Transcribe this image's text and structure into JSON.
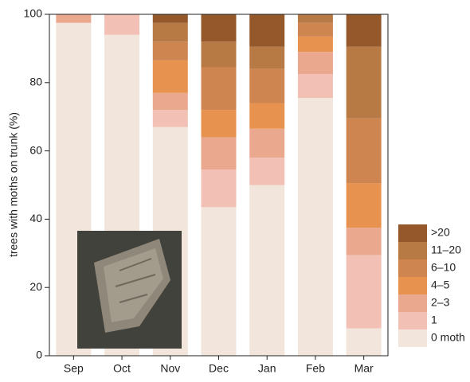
{
  "chart_data": {
    "type": "stacked_bar",
    "y_label": "trees with moths on trunk (%)",
    "categories": [
      "Sep",
      "Oct",
      "Nov",
      "Dec",
      "Jan",
      "Feb",
      "Mar"
    ],
    "series": [
      {
        "name": "0 moth",
        "color": "#f2e6dc",
        "values": [
          97.5,
          94,
          67,
          43.5,
          50,
          75.5,
          8
        ]
      },
      {
        "name": "1",
        "color": "#f2c0b4",
        "values": [
          0,
          6,
          5,
          11,
          8,
          7,
          21.5
        ]
      },
      {
        "name": "2–3",
        "color": "#eaa88e",
        "values": [
          2.5,
          0,
          5,
          9.5,
          8.5,
          6.5,
          8
        ]
      },
      {
        "name": "4–5",
        "color": "#e8924f",
        "values": [
          0,
          0,
          9.5,
          8,
          7.5,
          4.5,
          13
        ]
      },
      {
        "name": "6–10",
        "color": "#cf8550",
        "values": [
          0,
          0,
          5.5,
          12.5,
          10,
          4,
          19
        ]
      },
      {
        "name": "11–20",
        "color": "#b87a45",
        "values": [
          0,
          0,
          5.5,
          7.5,
          6.5,
          2.5,
          21
        ]
      },
      {
        "name": ">20",
        "color": "#94582b",
        "values": [
          0,
          0,
          2.5,
          8,
          9.5,
          0,
          9.5
        ]
      }
    ],
    "ylim": [
      0,
      100
    ],
    "yticks": [
      0,
      20,
      40,
      60,
      80,
      100
    ],
    "grid": false,
    "legend": "lower right"
  }
}
